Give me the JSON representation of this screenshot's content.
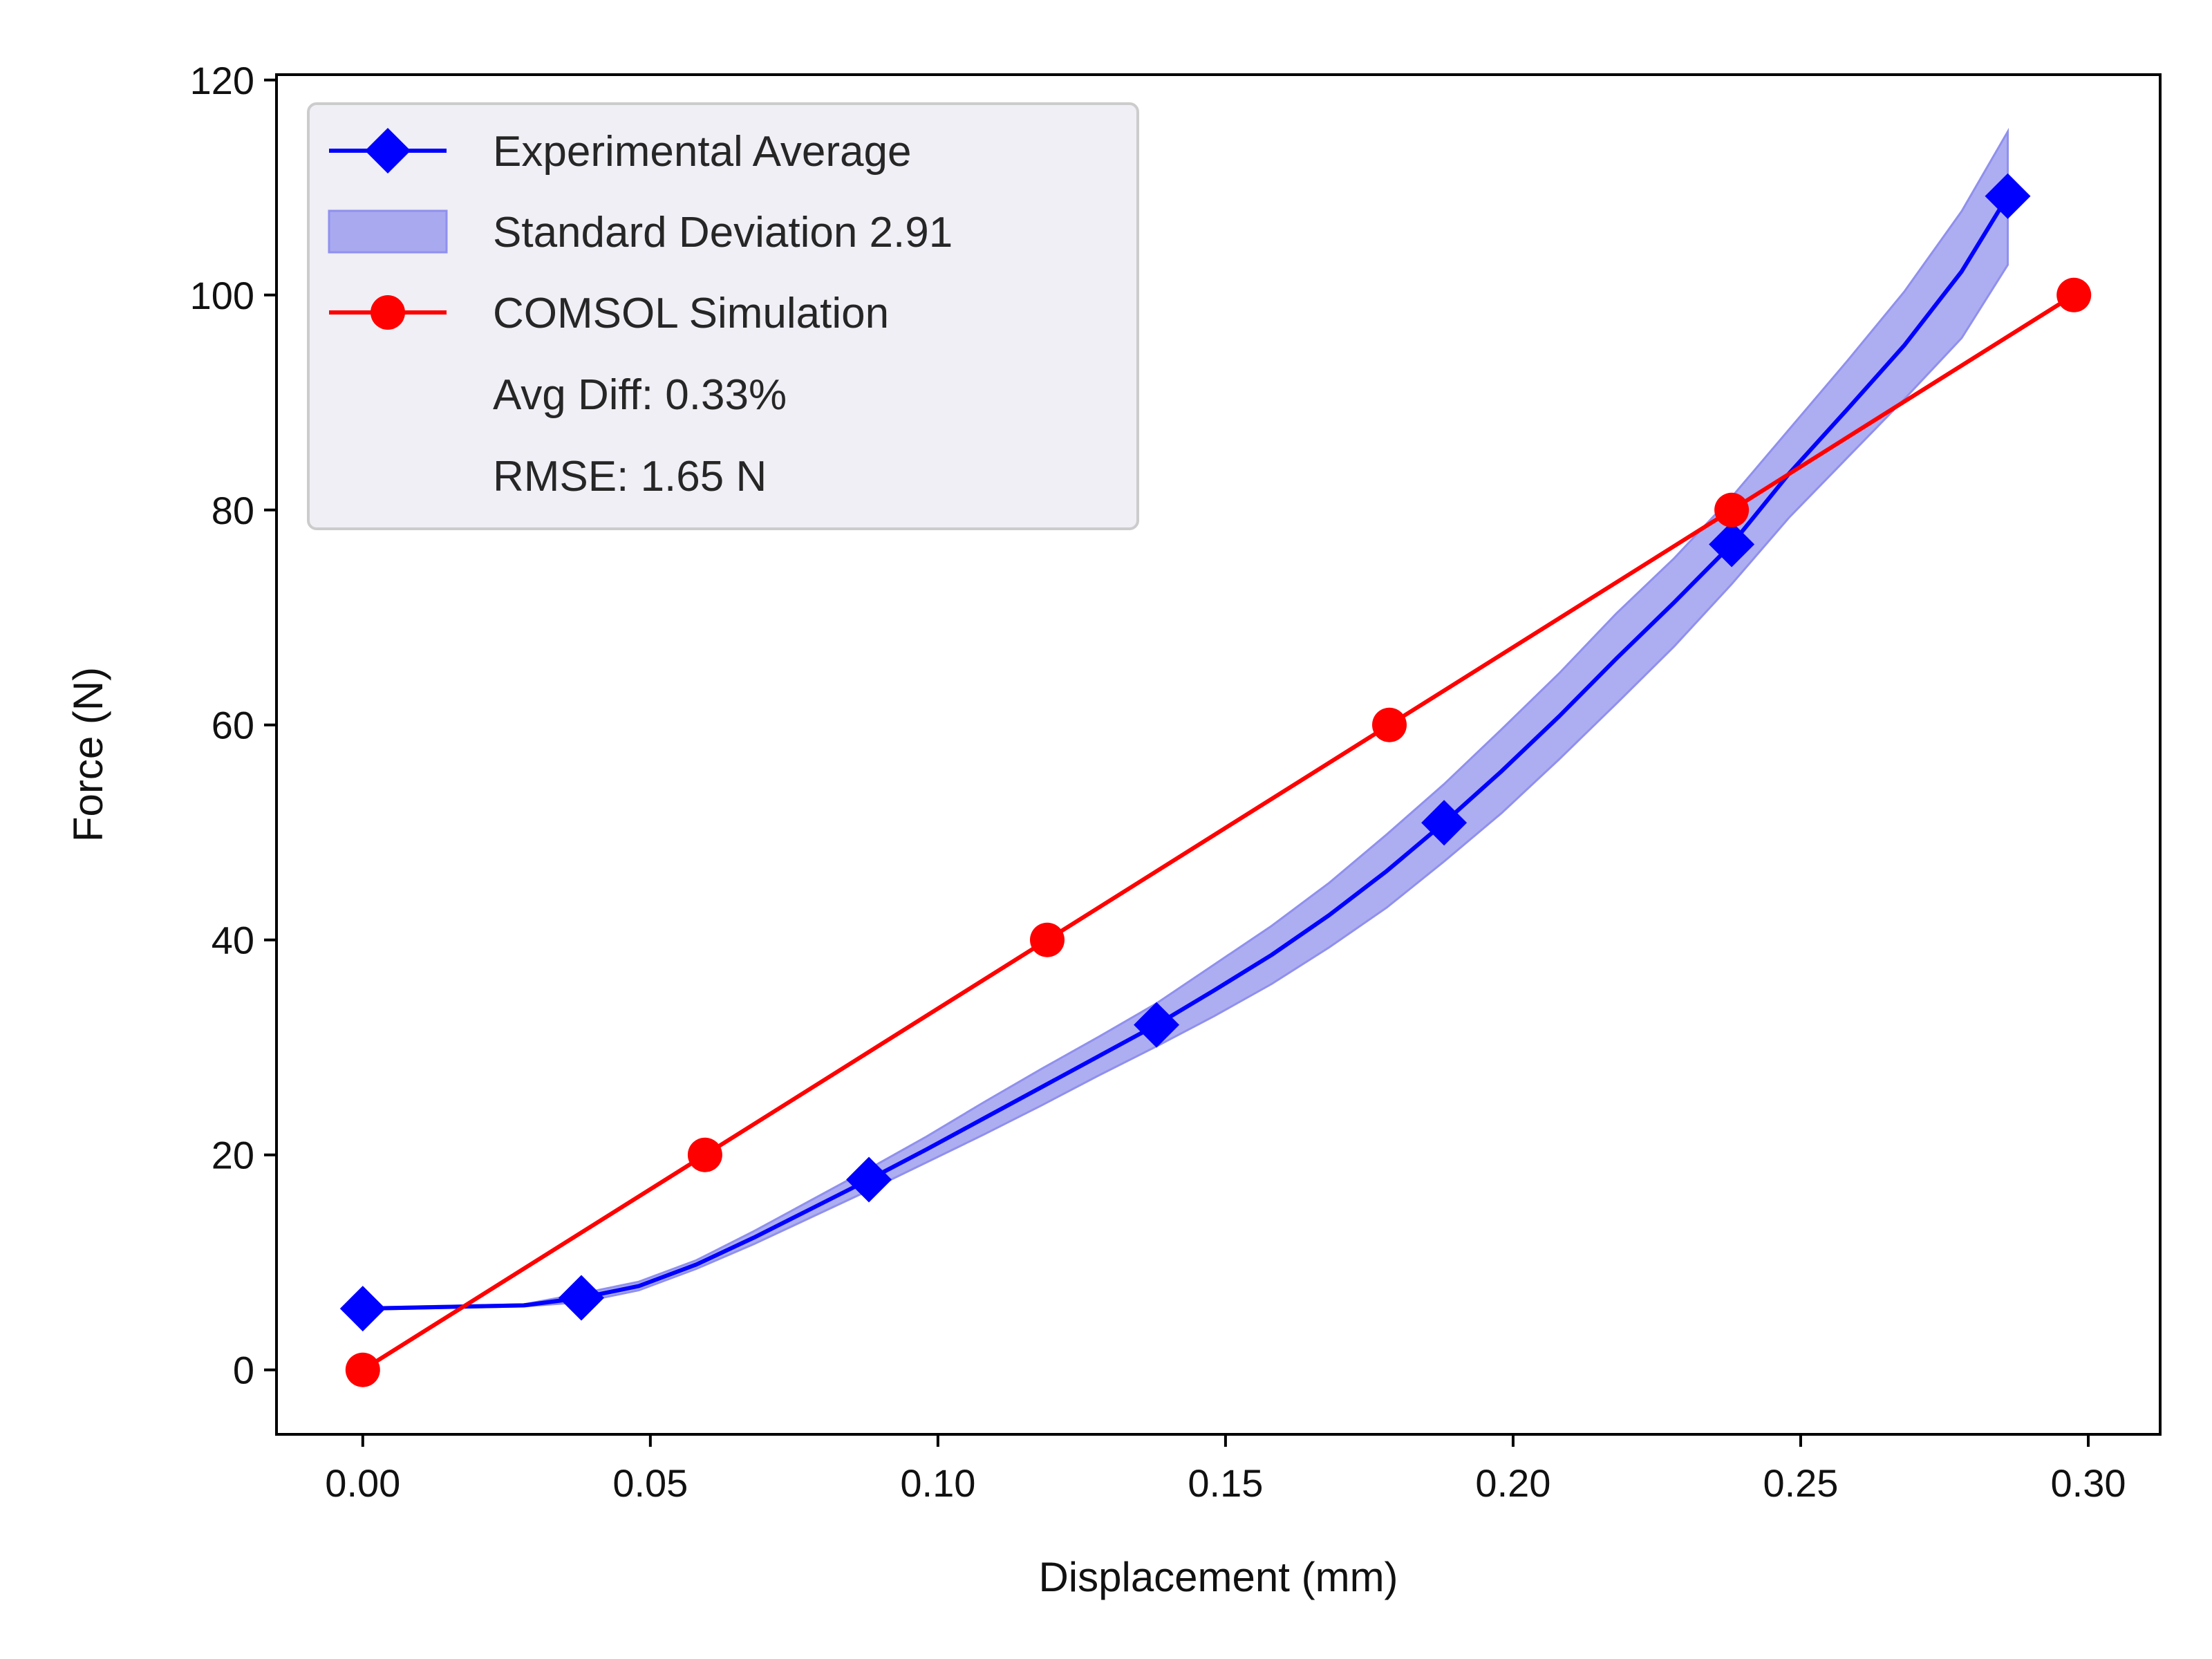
{
  "chart_data": {
    "type": "line",
    "xlabel": "Displacement (mm)",
    "ylabel": "Force (N)",
    "xlim": [
      -0.015,
      0.3125
    ],
    "ylim": [
      -6,
      120.5
    ],
    "xticks": [
      0.0,
      0.05,
      0.1,
      0.15,
      0.2,
      0.25,
      0.3
    ],
    "xtick_labels": [
      "0.00",
      "0.05",
      "0.10",
      "0.15",
      "0.20",
      "0.25",
      "0.30"
    ],
    "yticks": [
      0,
      20,
      40,
      60,
      80,
      100,
      120
    ],
    "ytick_labels": [
      "0",
      "20",
      "40",
      "60",
      "80",
      "100",
      "120"
    ],
    "grid": false,
    "legend_position": "top-left",
    "series": [
      {
        "name": "Experimental Average",
        "color": "#0000ff",
        "marker": "diamond",
        "x": [
          0.0,
          0.028,
          0.038,
          0.048,
          0.058,
          0.068,
          0.078,
          0.088,
          0.098,
          0.108,
          0.118,
          0.128,
          0.138,
          0.148,
          0.158,
          0.168,
          0.178,
          0.188,
          0.198,
          0.208,
          0.218,
          0.228,
          0.238,
          0.248,
          0.258,
          0.268,
          0.278,
          0.286
        ],
        "y": [
          5.7,
          6.0,
          6.7,
          7.8,
          9.8,
          12.3,
          15.0,
          17.7,
          20.5,
          23.4,
          26.3,
          29.2,
          32.1,
          35.3,
          38.6,
          42.3,
          46.4,
          50.9,
          55.7,
          60.8,
          66.2,
          71.4,
          76.8,
          83.4,
          89.3,
          95.3,
          102.2,
          109.2
        ],
        "marker_x": [
          0.0,
          0.038,
          0.088,
          0.138,
          0.188,
          0.238,
          0.286
        ],
        "marker_y": [
          5.7,
          6.7,
          17.7,
          32.1,
          50.9,
          76.8,
          109.2
        ]
      },
      {
        "name": "Standard Deviation 2.91",
        "type": "band",
        "color": "#a9a9f0",
        "x": [
          0.0,
          0.028,
          0.038,
          0.048,
          0.058,
          0.068,
          0.078,
          0.088,
          0.098,
          0.108,
          0.118,
          0.128,
          0.138,
          0.148,
          0.158,
          0.168,
          0.178,
          0.188,
          0.198,
          0.208,
          0.218,
          0.228,
          0.238,
          0.248,
          0.258,
          0.268,
          0.278,
          0.286
        ],
        "lower": [
          5.6,
          5.9,
          6.3,
          7.4,
          9.4,
          11.7,
          14.2,
          16.7,
          19.3,
          21.9,
          24.6,
          27.4,
          30.1,
          32.9,
          35.9,
          39.3,
          43.0,
          47.3,
          51.8,
          56.8,
          62.0,
          67.3,
          73.1,
          79.3,
          84.8,
          90.3,
          96.0,
          102.8
        ],
        "upper": [
          5.8,
          6.1,
          7.1,
          8.2,
          10.2,
          12.9,
          15.8,
          18.7,
          21.7,
          24.9,
          28.0,
          31.0,
          34.1,
          37.7,
          41.3,
          45.3,
          49.8,
          54.5,
          59.6,
          64.8,
          70.4,
          75.5,
          81.2,
          87.5,
          93.8,
          100.3,
          107.8,
          115.2
        ]
      },
      {
        "name": "COMSOL Simulation",
        "color": "#ff0000",
        "marker": "circle",
        "x": [
          0.0,
          0.0595,
          0.119,
          0.1785,
          0.238,
          0.2975
        ],
        "y": [
          0,
          20,
          40,
          60,
          80,
          100
        ]
      }
    ],
    "annotations": [
      "Avg Diff: 0.33%",
      "RMSE: 1.65 N"
    ]
  }
}
